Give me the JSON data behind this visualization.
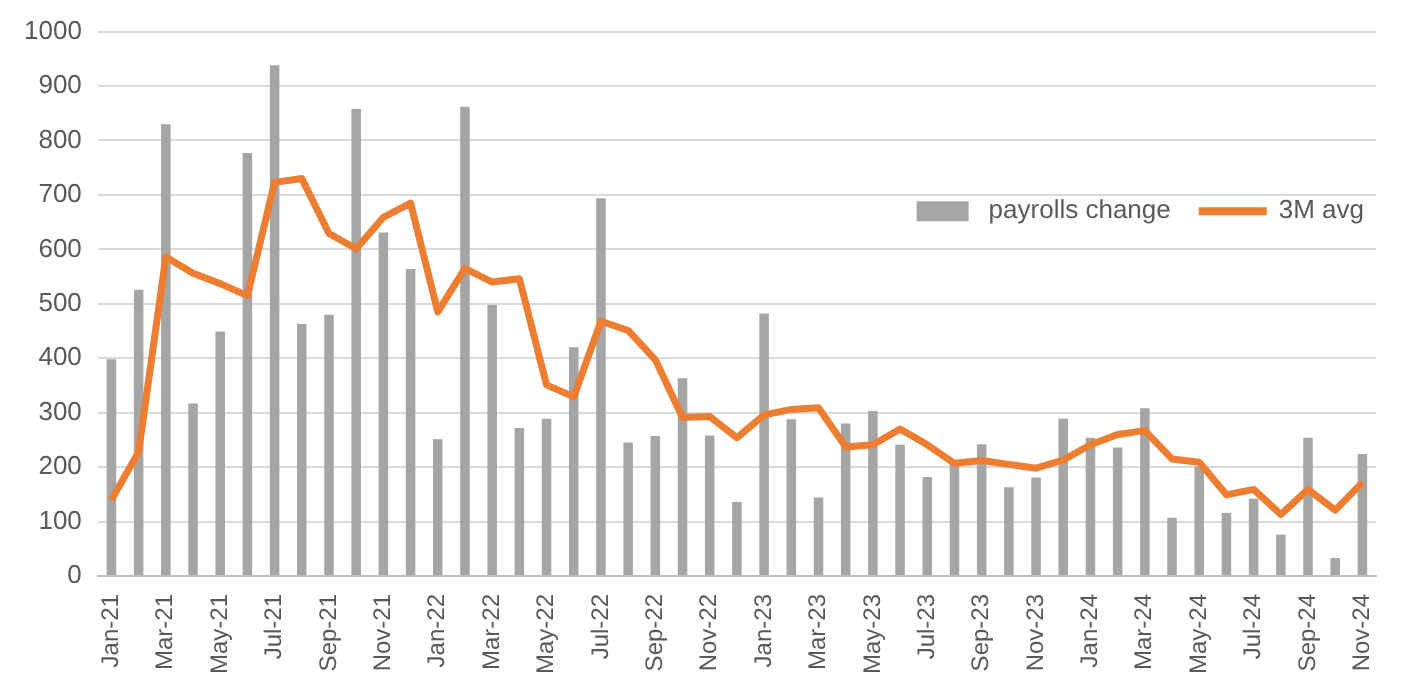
{
  "chart_data": {
    "type": "bar",
    "categories": [
      "Jan-21",
      null,
      "Mar-21",
      null,
      "May-21",
      null,
      "Jul-21",
      null,
      "Sep-21",
      null,
      "Nov-21",
      null,
      "Jan-22",
      null,
      "Mar-22",
      null,
      "May-22",
      null,
      "Jul-22",
      null,
      "Sep-22",
      null,
      "Nov-22",
      null,
      "Jan-23",
      null,
      "Mar-23",
      null,
      "May-23",
      null,
      "Jul-23",
      null,
      "Sep-23",
      null,
      "Nov-23",
      null,
      "Jan-24",
      null,
      "Mar-24",
      null,
      "May-24",
      null,
      "Jul-24",
      null,
      "Sep-24",
      null,
      "Nov-24"
    ],
    "series": [
      {
        "name": "payrolls change",
        "color": "#a5a5a5",
        "values": [
          398,
          526,
          830,
          317,
          449,
          777,
          938,
          463,
          480,
          858,
          631,
          564,
          251,
          862,
          498,
          272,
          289,
          420,
          694,
          245,
          257,
          363,
          258,
          136,
          482,
          288,
          144,
          280,
          303,
          241,
          182,
          207,
          242,
          163,
          181,
          289,
          254,
          236,
          308,
          107,
          201,
          116,
          142,
          76,
          254,
          33,
          224
        ]
      },
      {
        "name": "3M avg",
        "type": "line",
        "color": "#ed7d31",
        "values": [
          140,
          228,
          586,
          556,
          537,
          515,
          723,
          730,
          629,
          601,
          659,
          685,
          485,
          565,
          540,
          546,
          351,
          329,
          468,
          451,
          397,
          291,
          293,
          254,
          296,
          306,
          309,
          237,
          241,
          270,
          241,
          207,
          212,
          205,
          198,
          213,
          241,
          260,
          267,
          215,
          209,
          149,
          159,
          113,
          159,
          121,
          172
        ]
      }
    ],
    "ylim": [
      0,
      1000
    ],
    "yticks": [
      0,
      100,
      200,
      300,
      400,
      500,
      600,
      700,
      800,
      900,
      1000
    ],
    "grid": "y",
    "legend": "top right",
    "marker": "none",
    "line_style": "solid"
  }
}
